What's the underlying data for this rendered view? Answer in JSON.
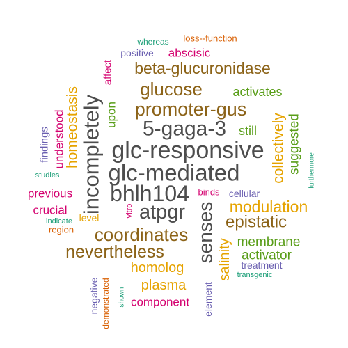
{
  "colors": {
    "dark_gray": "#4d4d4d",
    "brown": "#8c6318",
    "gold": "#e6a300",
    "green": "#5a9e1a",
    "magenta": "#d4006f",
    "purple": "#6a5fb0",
    "teal": "#1b9e77",
    "orange": "#d95f02"
  },
  "words": [
    {
      "text": "glc-responsive",
      "color": "dark_gray"
    },
    {
      "text": "glc-mediated",
      "color": "dark_gray"
    },
    {
      "text": "5-gaga-3",
      "color": "dark_gray"
    },
    {
      "text": "bhlh104",
      "color": "dark_gray"
    },
    {
      "text": "incompletely",
      "color": "dark_gray"
    },
    {
      "text": "atpgr",
      "color": "dark_gray"
    },
    {
      "text": "senses",
      "color": "dark_gray"
    },
    {
      "text": "promoter-gus",
      "color": "brown"
    },
    {
      "text": "glucose",
      "color": "brown"
    },
    {
      "text": "beta-glucuronidase",
      "color": "brown"
    },
    {
      "text": "coordinates",
      "color": "brown"
    },
    {
      "text": "nevertheless",
      "color": "brown"
    },
    {
      "text": "epistatic",
      "color": "brown"
    },
    {
      "text": "modulation",
      "color": "gold"
    },
    {
      "text": "collectively",
      "color": "gold"
    },
    {
      "text": "homeostasis",
      "color": "gold"
    },
    {
      "text": "homolog",
      "color": "gold"
    },
    {
      "text": "plasma",
      "color": "gold"
    },
    {
      "text": "salinity",
      "color": "gold"
    },
    {
      "text": "level",
      "color": "gold"
    },
    {
      "text": "suggested",
      "color": "green"
    },
    {
      "text": "activates",
      "color": "green"
    },
    {
      "text": "still",
      "color": "green"
    },
    {
      "text": "upon",
      "color": "green"
    },
    {
      "text": "membrane",
      "color": "green"
    },
    {
      "text": "activator",
      "color": "green"
    },
    {
      "text": "understood",
      "color": "magenta"
    },
    {
      "text": "abscisic",
      "color": "magenta"
    },
    {
      "text": "affect",
      "color": "magenta"
    },
    {
      "text": "previous",
      "color": "magenta"
    },
    {
      "text": "crucial",
      "color": "magenta"
    },
    {
      "text": "component",
      "color": "magenta"
    },
    {
      "text": "binds",
      "color": "magenta"
    },
    {
      "text": "vitro",
      "color": "magenta"
    },
    {
      "text": "findings",
      "color": "purple"
    },
    {
      "text": "positive",
      "color": "purple"
    },
    {
      "text": "cellular",
      "color": "purple"
    },
    {
      "text": "treatment",
      "color": "purple"
    },
    {
      "text": "negative",
      "color": "purple"
    },
    {
      "text": "element",
      "color": "purple"
    },
    {
      "text": "whereas",
      "color": "teal"
    },
    {
      "text": "studies",
      "color": "teal"
    },
    {
      "text": "indicate",
      "color": "teal"
    },
    {
      "text": "furthermore",
      "color": "teal"
    },
    {
      "text": "transgenic",
      "color": "teal"
    },
    {
      "text": "shown",
      "color": "teal"
    },
    {
      "text": "loss--function",
      "color": "orange"
    },
    {
      "text": "region",
      "color": "orange"
    },
    {
      "text": "demonstrated",
      "color": "orange"
    }
  ]
}
